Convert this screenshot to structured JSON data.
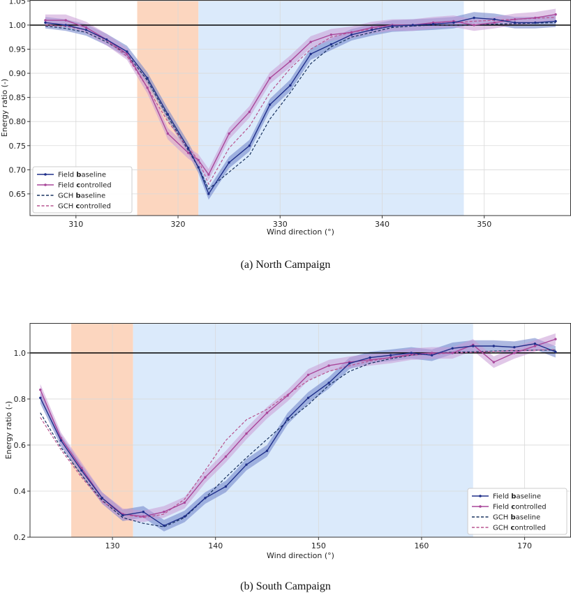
{
  "colors": {
    "field_baseline": "#1f2f8a",
    "field_controlled": "#a9479a",
    "gch_baseline": "#16305e",
    "gch_controlled": "#b8538f",
    "band_baseline": "#6c7fc8",
    "band_controlled": "#c89ad6",
    "orange_region": "#fcd6bf",
    "blue_region": "#dbeafb",
    "grid": "#d9d9d9",
    "reference_line": "#000000"
  },
  "chart_data": [
    {
      "type": "line",
      "caption": "(a) North Campaign",
      "xlabel": "Wind direction (°)",
      "ylabel": "Energy ratio (-)",
      "xlim": [
        305.5,
        358.5
      ],
      "ylim": [
        0.605,
        1.052
      ],
      "xticks": [
        310,
        320,
        330,
        340,
        350
      ],
      "yticks": [
        0.65,
        0.7,
        0.75,
        0.8,
        0.85,
        0.9,
        0.95,
        1.0,
        1.05
      ],
      "ytick_labels": [
        "0.65",
        "0.70",
        "0.75",
        "0.80",
        "0.85",
        "0.90",
        "0.95",
        "1.00",
        "1.05"
      ],
      "reference_y": 1.0,
      "regions": [
        {
          "kind": "orange",
          "x0": 316,
          "x1": 322
        },
        {
          "kind": "blue",
          "x0": 322,
          "x1": 348
        }
      ],
      "legend_position": "lower-left",
      "legend": [
        {
          "key": "field_baseline",
          "prefix": "Field ",
          "bold": "b",
          "rest": "aseline"
        },
        {
          "key": "field_controlled",
          "prefix": "Field ",
          "bold": "c",
          "rest": "ontrolled"
        },
        {
          "key": "gch_baseline",
          "prefix": "GCH ",
          "bold": "b",
          "rest": "aseline"
        },
        {
          "key": "gch_controlled",
          "prefix": "GCH ",
          "bold": "c",
          "rest": "ontrolled"
        }
      ],
      "x": [
        307,
        309,
        311,
        313,
        315,
        317,
        319,
        321,
        322,
        323,
        325,
        327,
        329,
        331,
        333,
        335,
        337,
        339,
        341,
        343,
        345,
        347,
        349,
        351,
        353,
        355,
        357
      ],
      "series": [
        {
          "key": "field_baseline",
          "style": "solid-marker",
          "band": 0.012,
          "values": [
            1.005,
            1.0,
            0.99,
            0.97,
            0.945,
            0.89,
            0.815,
            0.745,
            0.705,
            0.65,
            0.715,
            0.75,
            0.835,
            0.875,
            0.94,
            0.96,
            0.98,
            0.99,
            0.998,
            1.0,
            1.002,
            1.005,
            1.015,
            1.012,
            1.005,
            1.005,
            1.008
          ]
        },
        {
          "key": "field_controlled",
          "style": "solid-marker",
          "band": 0.012,
          "values": [
            1.01,
            1.01,
            0.995,
            0.97,
            0.94,
            0.87,
            0.775,
            0.735,
            0.72,
            0.69,
            0.775,
            0.82,
            0.89,
            0.925,
            0.965,
            0.98,
            0.985,
            0.995,
            1.0,
            1.0,
            1.005,
            1.008,
            1.0,
            1.005,
            1.012,
            1.015,
            1.022
          ]
        },
        {
          "key": "gch_baseline",
          "style": "dashed",
          "values": [
            0.998,
            0.993,
            0.985,
            0.965,
            0.94,
            0.885,
            0.81,
            0.74,
            0.705,
            0.66,
            0.695,
            0.73,
            0.805,
            0.86,
            0.92,
            0.955,
            0.975,
            0.985,
            0.995,
            0.998,
            1.0,
            1.0,
            1.0,
            1.002,
            1.003,
            1.004,
            1.005
          ]
        },
        {
          "key": "gch_controlled",
          "style": "dashed",
          "values": [
            1.0,
            0.997,
            0.99,
            0.968,
            0.935,
            0.87,
            0.8,
            0.745,
            0.72,
            0.67,
            0.745,
            0.79,
            0.86,
            0.91,
            0.95,
            0.975,
            0.985,
            0.992,
            0.998,
            1.0,
            1.003,
            1.005,
            1.008,
            1.01,
            1.012,
            1.014,
            1.016
          ]
        }
      ]
    },
    {
      "type": "line",
      "caption": "(b) South Campaign",
      "xlabel": "Wind direction (°)",
      "ylabel": "Energy ratio (-)",
      "xlim": [
        122.0,
        174.5
      ],
      "ylim": [
        0.2,
        1.13
      ],
      "xticks": [
        130,
        140,
        150,
        160,
        170
      ],
      "yticks": [
        0.2,
        0.4,
        0.6,
        0.8,
        1.0
      ],
      "ytick_labels": [
        "0.2",
        "0.4",
        "0.6",
        "0.8",
        "1.0"
      ],
      "reference_y": 1.0,
      "regions": [
        {
          "kind": "orange",
          "x0": 126,
          "x1": 132
        },
        {
          "kind": "blue",
          "x0": 132,
          "x1": 165
        }
      ],
      "legend_position": "lower-right",
      "legend": [
        {
          "key": "field_baseline",
          "prefix": "Field ",
          "bold": "b",
          "rest": "aseline"
        },
        {
          "key": "field_controlled",
          "prefix": "Field ",
          "bold": "c",
          "rest": "ontrolled"
        },
        {
          "key": "gch_baseline",
          "prefix": "GCH ",
          "bold": "b",
          "rest": "aseline"
        },
        {
          "key": "gch_controlled",
          "prefix": "GCH ",
          "bold": "c",
          "rest": "ontrolled"
        }
      ],
      "x": [
        123,
        125,
        127,
        129,
        131,
        133,
        135,
        137,
        139,
        141,
        143,
        145,
        147,
        149,
        151,
        153,
        155,
        157,
        159,
        161,
        163,
        165,
        167,
        169,
        171,
        173
      ],
      "series": [
        {
          "key": "field_baseline",
          "style": "solid-marker",
          "band": 0.025,
          "values": [
            0.805,
            0.62,
            0.49,
            0.37,
            0.295,
            0.31,
            0.25,
            0.29,
            0.37,
            0.42,
            0.515,
            0.575,
            0.715,
            0.805,
            0.87,
            0.955,
            0.98,
            0.99,
            1.0,
            0.99,
            1.02,
            1.03,
            1.03,
            1.025,
            1.04,
            1.005
          ]
        },
        {
          "key": "field_controlled",
          "style": "solid-marker",
          "band": 0.025,
          "values": [
            0.84,
            0.63,
            0.5,
            0.37,
            0.3,
            0.29,
            0.31,
            0.35,
            0.46,
            0.55,
            0.65,
            0.74,
            0.815,
            0.905,
            0.945,
            0.96,
            0.97,
            0.98,
            0.995,
            1.0,
            1.0,
            1.035,
            0.96,
            1.0,
            1.03,
            1.06
          ]
        },
        {
          "key": "gch_baseline",
          "style": "dashed",
          "values": [
            0.74,
            0.59,
            0.47,
            0.36,
            0.285,
            0.26,
            0.245,
            0.285,
            0.37,
            0.46,
            0.545,
            0.625,
            0.705,
            0.775,
            0.86,
            0.92,
            0.955,
            0.975,
            0.99,
            1.0,
            1.003,
            1.005,
            1.008,
            1.01,
            1.012,
            1.012
          ]
        },
        {
          "key": "gch_controlled",
          "style": "dashed",
          "values": [
            0.72,
            0.58,
            0.46,
            0.355,
            0.3,
            0.285,
            0.3,
            0.365,
            0.49,
            0.62,
            0.71,
            0.755,
            0.82,
            0.88,
            0.92,
            0.945,
            0.965,
            0.98,
            0.99,
            0.995,
            1.0,
            1.003,
            1.006,
            1.01,
            1.012,
            1.015
          ]
        }
      ]
    }
  ]
}
